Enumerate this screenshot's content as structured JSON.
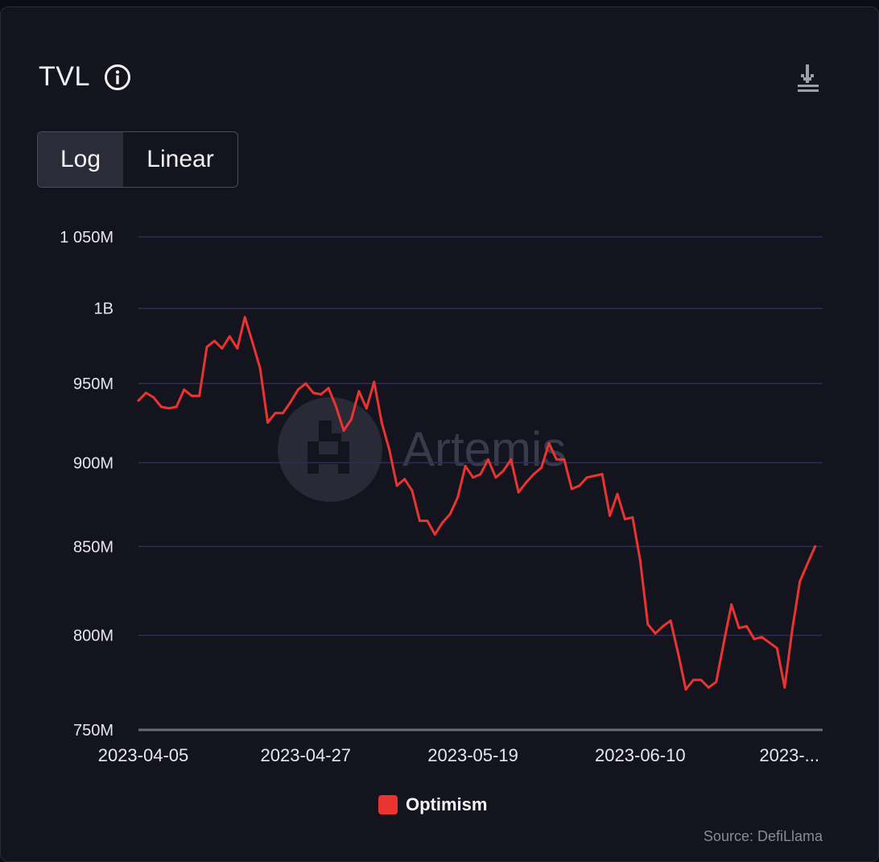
{
  "header": {
    "title": "TVL",
    "info_icon": "info-circle-icon",
    "download_icon": "download-icon"
  },
  "scale_toggle": {
    "options": [
      "Log",
      "Linear"
    ],
    "selected": "Log"
  },
  "watermark": {
    "text": "Artemis"
  },
  "source": "Source: DefiLlama",
  "colors": {
    "background": "#14141f",
    "line": "#ea3431",
    "grid": "#2e2e52",
    "text": "#e6e6ec"
  },
  "chart_data": {
    "type": "line",
    "title": "TVL",
    "log_scale": true,
    "grid": true,
    "legend_position": "bottom-center",
    "ylim": [
      750000000,
      1050000000
    ],
    "yticks": [
      {
        "value": 1050000000,
        "label": "1 050M"
      },
      {
        "value": 1000000000,
        "label": "1B"
      },
      {
        "value": 950000000,
        "label": "950M"
      },
      {
        "value": 900000000,
        "label": "900M"
      },
      {
        "value": 850000000,
        "label": "850M"
      },
      {
        "value": 800000000,
        "label": "800M"
      },
      {
        "value": 750000000,
        "label": "750M"
      }
    ],
    "xticks": [
      {
        "date": "2023-04-05",
        "label": "2023-04-05"
      },
      {
        "date": "2023-04-27",
        "label": "2023-04-27"
      },
      {
        "date": "2023-05-19",
        "label": "2023-05-19"
      },
      {
        "date": "2023-06-10",
        "label": "2023-06-10"
      },
      {
        "date": "2023-07-02",
        "label": "2023-..."
      }
    ],
    "x_start": "2023-04-05",
    "x_end": "2023-07-04",
    "series": [
      {
        "name": "Optimism",
        "color": "#ea3431",
        "points": [
          [
            "2023-04-05",
            939000000
          ],
          [
            "2023-04-06",
            944000000
          ],
          [
            "2023-04-07",
            941000000
          ],
          [
            "2023-04-08",
            935000000
          ],
          [
            "2023-04-09",
            934000000
          ],
          [
            "2023-04-10",
            935000000
          ],
          [
            "2023-04-11",
            946000000
          ],
          [
            "2023-04-12",
            942000000
          ],
          [
            "2023-04-13",
            942000000
          ],
          [
            "2023-04-14",
            974000000
          ],
          [
            "2023-04-15",
            978000000
          ],
          [
            "2023-04-16",
            973000000
          ],
          [
            "2023-04-17",
            981000000
          ],
          [
            "2023-04-18",
            973000000
          ],
          [
            "2023-04-19",
            994000000
          ],
          [
            "2023-04-20",
            977000000
          ],
          [
            "2023-04-21",
            960000000
          ],
          [
            "2023-04-22",
            925000000
          ],
          [
            "2023-04-23",
            931000000
          ],
          [
            "2023-04-24",
            931000000
          ],
          [
            "2023-04-25",
            938000000
          ],
          [
            "2023-04-26",
            946000000
          ],
          [
            "2023-04-27",
            950000000
          ],
          [
            "2023-04-28",
            944000000
          ],
          [
            "2023-04-29",
            943000000
          ],
          [
            "2023-04-30",
            947000000
          ],
          [
            "2023-05-01",
            935000000
          ],
          [
            "2023-05-02",
            920000000
          ],
          [
            "2023-05-03",
            927000000
          ],
          [
            "2023-05-04",
            945000000
          ],
          [
            "2023-05-05",
            934000000
          ],
          [
            "2023-05-06",
            951000000
          ],
          [
            "2023-05-07",
            925000000
          ],
          [
            "2023-05-08",
            908000000
          ],
          [
            "2023-05-09",
            886000000
          ],
          [
            "2023-05-10",
            890000000
          ],
          [
            "2023-05-11",
            883000000
          ],
          [
            "2023-05-12",
            865000000
          ],
          [
            "2023-05-13",
            865000000
          ],
          [
            "2023-05-14",
            857000000
          ],
          [
            "2023-05-15",
            864000000
          ],
          [
            "2023-05-16",
            869000000
          ],
          [
            "2023-05-17",
            879000000
          ],
          [
            "2023-05-18",
            898000000
          ],
          [
            "2023-05-19",
            891000000
          ],
          [
            "2023-05-20",
            893000000
          ],
          [
            "2023-05-21",
            902000000
          ],
          [
            "2023-05-22",
            891000000
          ],
          [
            "2023-05-23",
            895000000
          ],
          [
            "2023-05-24",
            902000000
          ],
          [
            "2023-05-25",
            882000000
          ],
          [
            "2023-05-26",
            888000000
          ],
          [
            "2023-05-27",
            893000000
          ],
          [
            "2023-05-28",
            897000000
          ],
          [
            "2023-05-29",
            912000000
          ],
          [
            "2023-05-30",
            902000000
          ],
          [
            "2023-05-31",
            902000000
          ],
          [
            "2023-06-01",
            884000000
          ],
          [
            "2023-06-02",
            886000000
          ],
          [
            "2023-06-03",
            891000000
          ],
          [
            "2023-06-04",
            892000000
          ],
          [
            "2023-06-05",
            893000000
          ],
          [
            "2023-06-06",
            868000000
          ],
          [
            "2023-06-07",
            881000000
          ],
          [
            "2023-06-08",
            866000000
          ],
          [
            "2023-06-09",
            867000000
          ],
          [
            "2023-06-10",
            842000000
          ],
          [
            "2023-06-11",
            806000000
          ],
          [
            "2023-06-12",
            801000000
          ],
          [
            "2023-06-13",
            805000000
          ],
          [
            "2023-06-14",
            808000000
          ],
          [
            "2023-06-15",
            790000000
          ],
          [
            "2023-06-16",
            771000000
          ],
          [
            "2023-06-17",
            776000000
          ],
          [
            "2023-06-18",
            776000000
          ],
          [
            "2023-06-19",
            772000000
          ],
          [
            "2023-06-20",
            775000000
          ],
          [
            "2023-06-21",
            796000000
          ],
          [
            "2023-06-22",
            817000000
          ],
          [
            "2023-06-23",
            804000000
          ],
          [
            "2023-06-24",
            805000000
          ],
          [
            "2023-06-25",
            798000000
          ],
          [
            "2023-06-26",
            799000000
          ],
          [
            "2023-06-27",
            796000000
          ],
          [
            "2023-06-28",
            793000000
          ],
          [
            "2023-06-29",
            772000000
          ],
          [
            "2023-06-30",
            803000000
          ],
          [
            "2023-07-01",
            830000000
          ],
          [
            "2023-07-02",
            840000000
          ],
          [
            "2023-07-03",
            850000000
          ]
        ]
      }
    ]
  }
}
